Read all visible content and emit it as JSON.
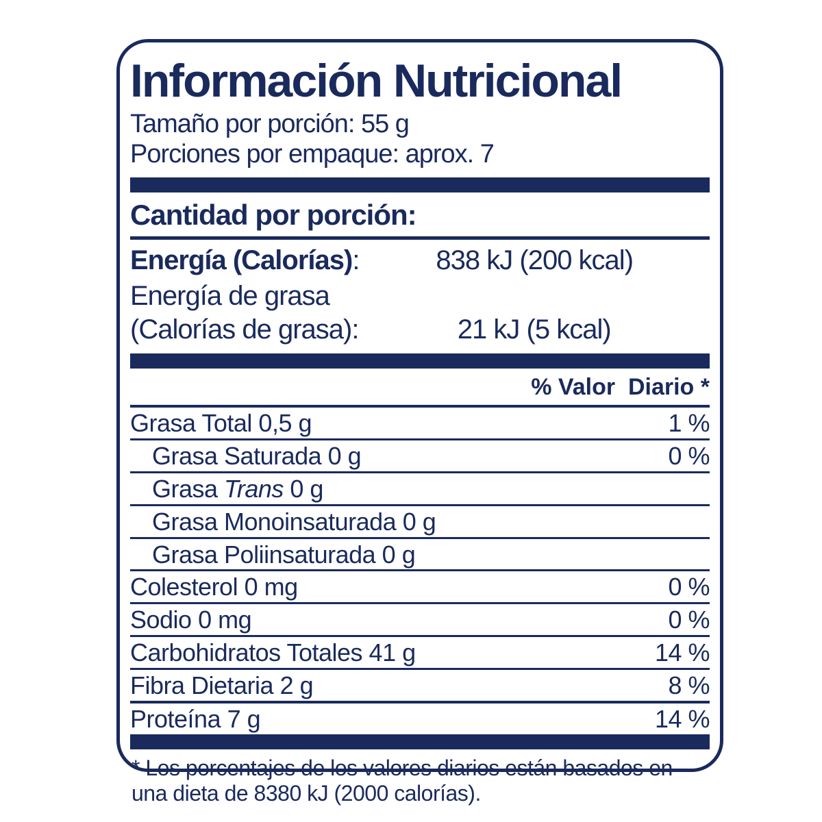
{
  "colors": {
    "navy": "#1a2a5c",
    "background": "#ffffff"
  },
  "label": {
    "title": "Información Nutricional",
    "serving_size": "Tamaño por porción: 55 g",
    "servings_per_package": "Porciones por empaque: aprox. 7",
    "amount_per_serving_header": "Cantidad por porción:",
    "energy": {
      "label": "Energía (Calorías)",
      "colon": ":",
      "value": "838 kJ (200 kcal)"
    },
    "energy_from_fat": {
      "label_line1": "Energía de grasa",
      "label_line2": "(Calorías de grasa):",
      "value": "21 kJ (5 kcal)"
    },
    "daily_value_header": "% Valor  Diario *",
    "footnote_line1": "* Los porcentajes de los valores diarios están basados en",
    "footnote_line2": "una dieta de 8380 kJ (2000 calorías)."
  },
  "table": {
    "rows": [
      {
        "name_parts": [
          {
            "text": "Grasa Total 0,5 g"
          }
        ],
        "dv": "1 %",
        "indent": false
      },
      {
        "name_parts": [
          {
            "text": "Grasa Saturada 0 g"
          }
        ],
        "dv": "0 %",
        "indent": true
      },
      {
        "name_parts": [
          {
            "text": "Grasa "
          },
          {
            "text": "Trans",
            "italic": true
          },
          {
            "text": " 0 g"
          }
        ],
        "dv": "",
        "indent": true
      },
      {
        "name_parts": [
          {
            "text": "Grasa Monoinsaturada 0 g"
          }
        ],
        "dv": "",
        "indent": true
      },
      {
        "name_parts": [
          {
            "text": "Grasa Poliinsaturada 0 g"
          }
        ],
        "dv": "",
        "indent": true
      },
      {
        "name_parts": [
          {
            "text": "Colesterol 0 mg"
          }
        ],
        "dv": "0 %",
        "indent": false
      },
      {
        "name_parts": [
          {
            "text": "Sodio 0 mg"
          }
        ],
        "dv": "0 %",
        "indent": false
      },
      {
        "name_parts": [
          {
            "text": "Carbohidratos Totales 41 g"
          }
        ],
        "dv": "14 %",
        "indent": false
      },
      {
        "name_parts": [
          {
            "text": "Fibra Dietaria 2 g"
          }
        ],
        "dv": "8 %",
        "indent": false
      },
      {
        "name_parts": [
          {
            "text": "Proteína 7 g"
          }
        ],
        "dv": "14 %",
        "indent": false
      }
    ]
  }
}
